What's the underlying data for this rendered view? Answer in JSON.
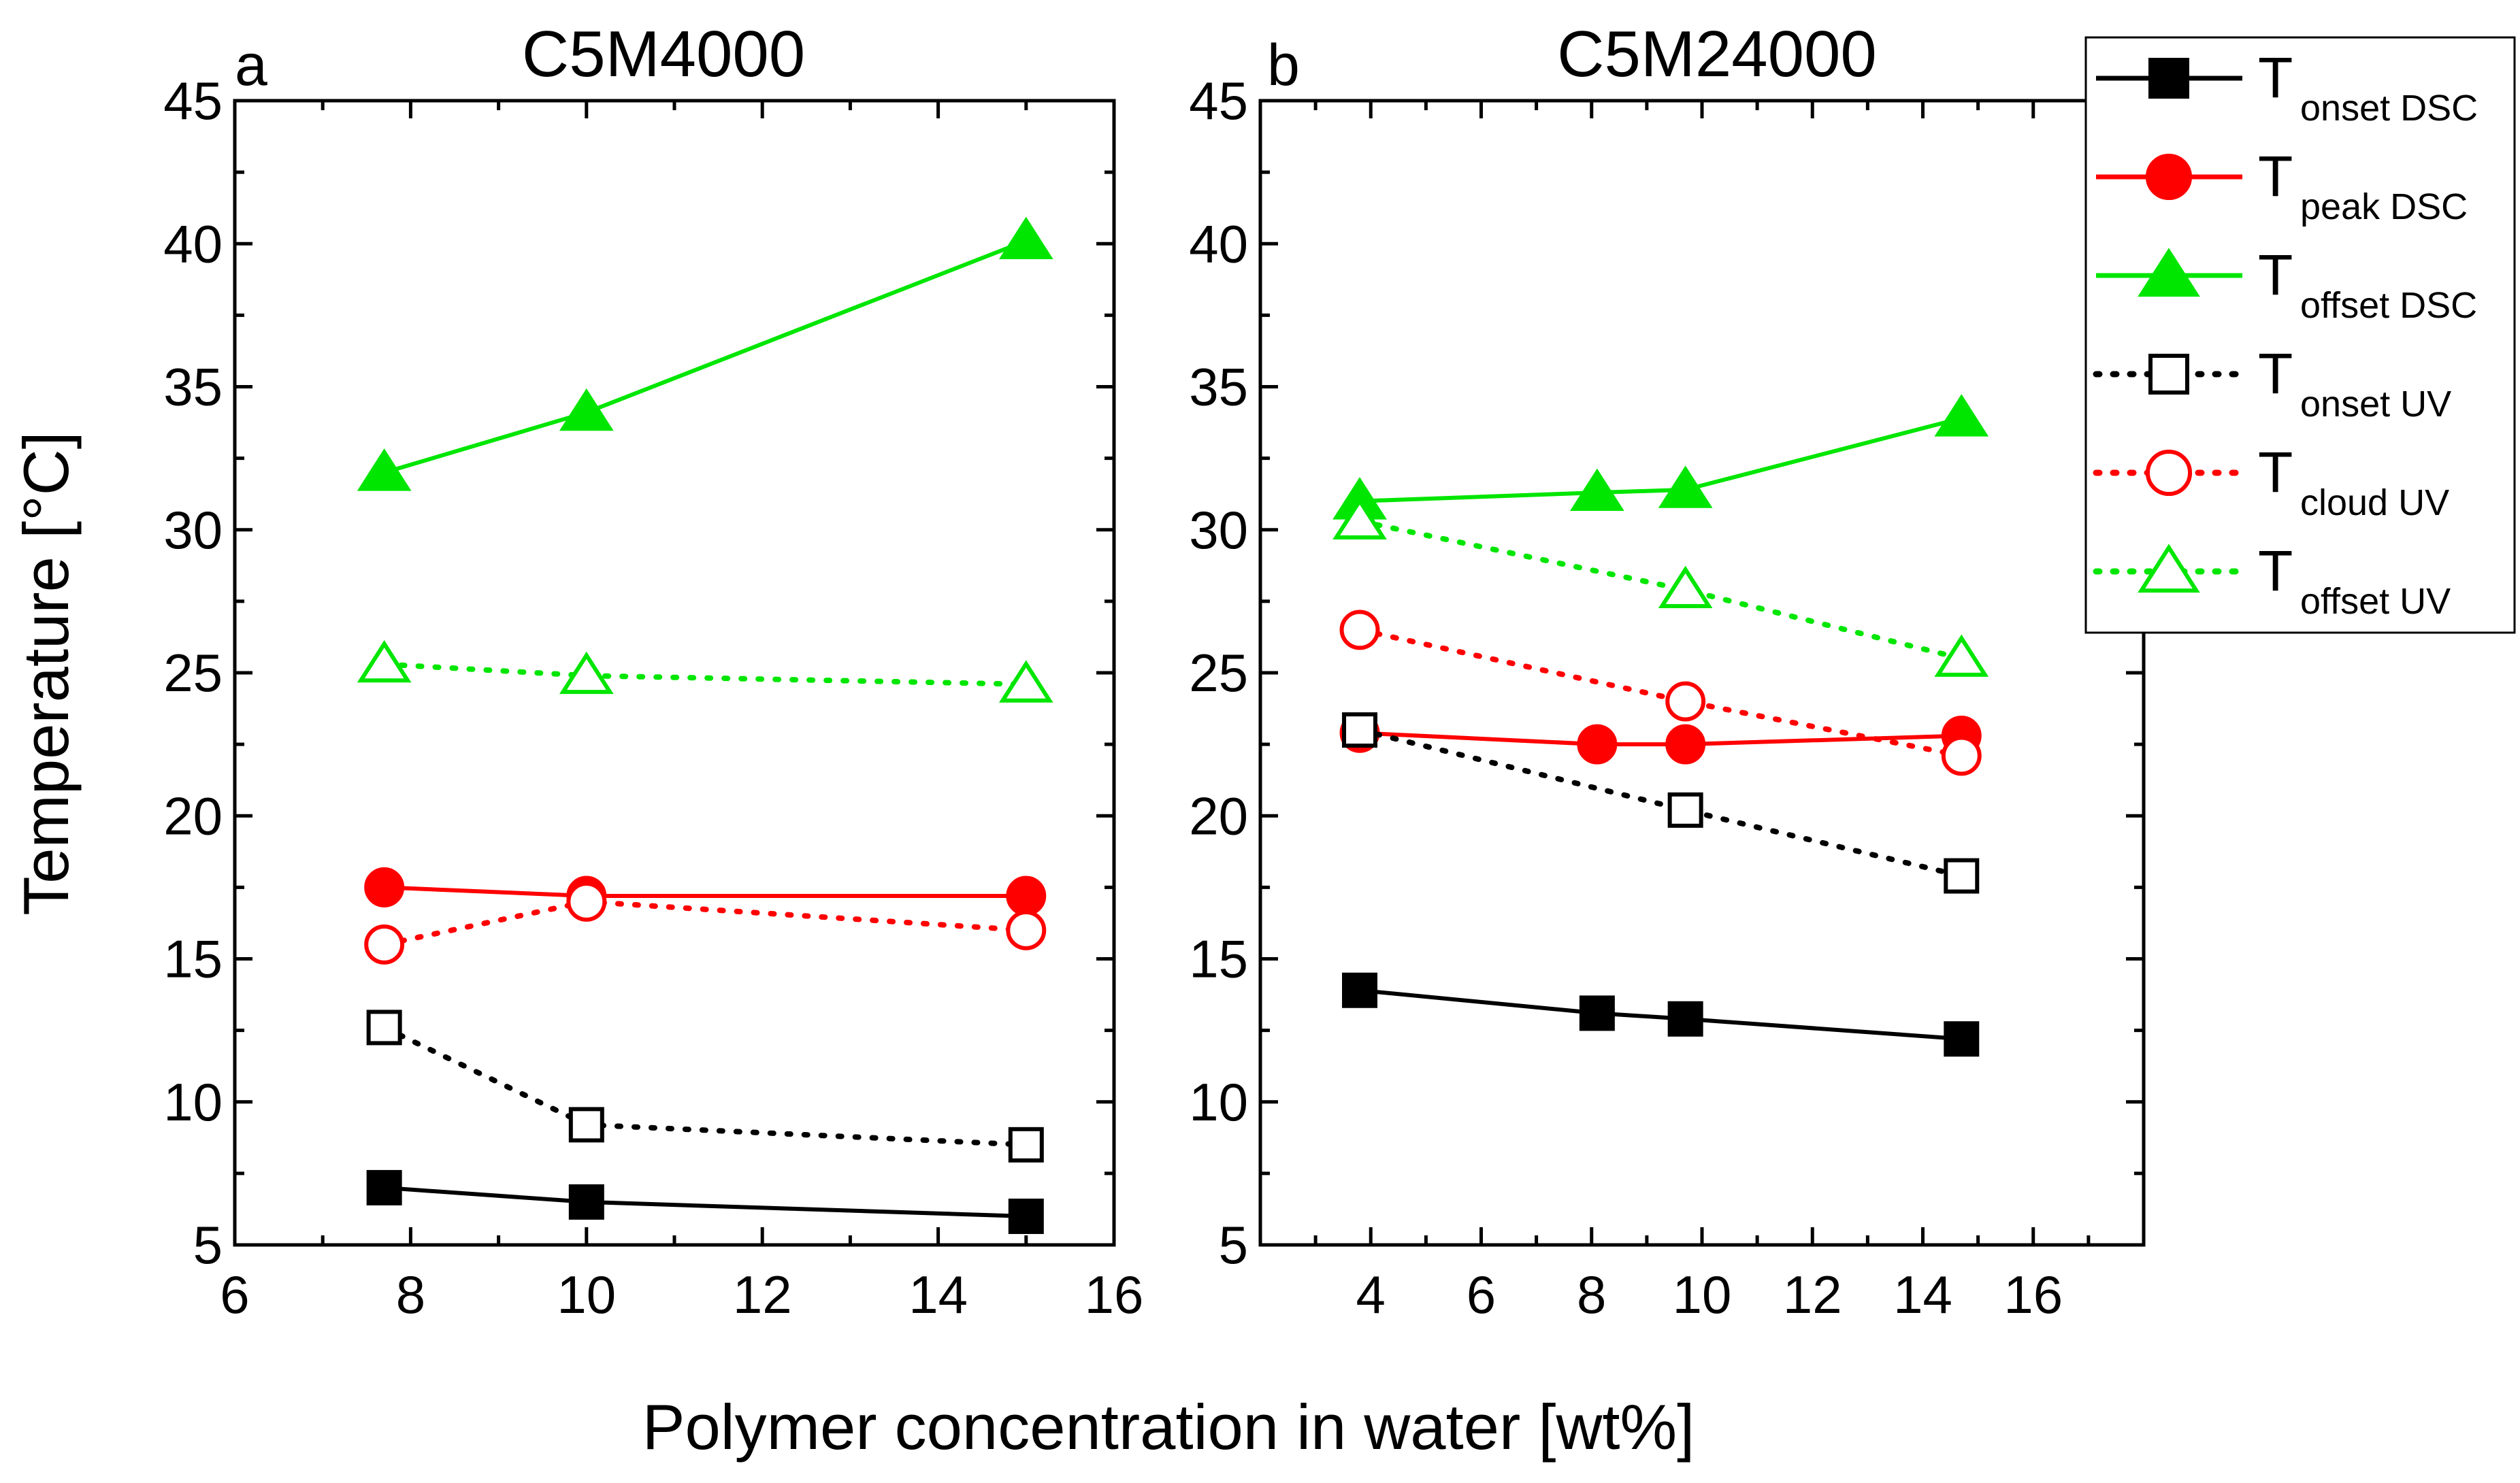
{
  "figure": {
    "shared_xlabel": "Polymer concentration in water [wt%]",
    "shared_ylabel": "Temperature [°C]"
  },
  "legend": {
    "entries": [
      {
        "main": "T",
        "sub": "onset DSC",
        "series_index": 0
      },
      {
        "main": "T",
        "sub": "peak  DSC",
        "series_index": 1
      },
      {
        "main": "T",
        "sub": "offset DSC",
        "series_index": 2
      },
      {
        "main": "T",
        "sub": "onset UV",
        "series_index": 3
      },
      {
        "main": "T",
        "sub": "cloud UV",
        "series_index": 4
      },
      {
        "main": "T",
        "sub": "offset UV",
        "series_index": 5
      }
    ]
  },
  "chart_data": [
    {
      "type": "line",
      "panel_letter": "a",
      "title": "C5M4000",
      "xlabel": "Polymer concentration in water [wt%]",
      "ylabel": "Temperature [°C]",
      "xlim": [
        6,
        16
      ],
      "ylim": [
        5,
        45
      ],
      "xticks": [
        6,
        8,
        10,
        12,
        14,
        16
      ],
      "yticks": [
        5,
        10,
        15,
        20,
        25,
        30,
        35,
        40,
        45
      ],
      "grid": false,
      "series": [
        {
          "name": "T onset DSC",
          "color": "#000000",
          "marker": "square",
          "filled": true,
          "line": "solid",
          "x": [
            7.7,
            10.0,
            15.0
          ],
          "y": [
            7.0,
            6.5,
            6.0
          ]
        },
        {
          "name": "T peak DSC",
          "color": "#ff0000",
          "marker": "circle",
          "filled": true,
          "line": "solid",
          "x": [
            7.7,
            10.0,
            15.0
          ],
          "y": [
            17.5,
            17.2,
            17.2
          ]
        },
        {
          "name": "T offset DSC",
          "color": "#00e600",
          "marker": "triangle",
          "filled": true,
          "line": "solid",
          "x": [
            7.7,
            10.0,
            15.0
          ],
          "y": [
            32.0,
            34.1,
            40.1
          ]
        },
        {
          "name": "T onset UV",
          "color": "#000000",
          "marker": "square",
          "filled": false,
          "line": "dotted",
          "x": [
            7.7,
            10.0,
            15.0
          ],
          "y": [
            12.6,
            9.2,
            8.5
          ]
        },
        {
          "name": "T cloud UV",
          "color": "#ff0000",
          "marker": "circle",
          "filled": false,
          "line": "dotted",
          "x": [
            7.7,
            10.0,
            15.0
          ],
          "y": [
            15.5,
            17.0,
            16.0
          ]
        },
        {
          "name": "T offset UV",
          "color": "#00e600",
          "marker": "triangle",
          "filled": false,
          "line": "dotted",
          "x": [
            7.7,
            10.0,
            15.0
          ],
          "y": [
            25.3,
            24.9,
            24.6
          ]
        }
      ]
    },
    {
      "type": "line",
      "panel_letter": "b",
      "title": "C5M24000",
      "xlabel": "Polymer concentration in water [wt%]",
      "ylabel": "",
      "xlim": [
        2,
        18
      ],
      "ylim": [
        5,
        45
      ],
      "xticks": [
        4,
        6,
        8,
        10,
        12,
        14,
        16
      ],
      "yticks": [
        5,
        10,
        15,
        20,
        25,
        30,
        35,
        40,
        45
      ],
      "grid": false,
      "series": [
        {
          "name": "T onset DSC",
          "color": "#000000",
          "marker": "square",
          "filled": true,
          "line": "solid",
          "x": [
            3.8,
            8.1,
            9.7,
            14.7
          ],
          "y": [
            13.9,
            13.1,
            12.9,
            12.2
          ]
        },
        {
          "name": "T peak DSC",
          "color": "#ff0000",
          "marker": "circle",
          "filled": true,
          "line": "solid",
          "x": [
            3.8,
            8.1,
            9.7,
            14.7
          ],
          "y": [
            22.9,
            22.5,
            22.5,
            22.8
          ]
        },
        {
          "name": "T offset DSC",
          "color": "#00e600",
          "marker": "triangle",
          "filled": true,
          "line": "solid",
          "x": [
            3.8,
            8.1,
            9.7,
            14.7
          ],
          "y": [
            31.0,
            31.3,
            31.4,
            33.9
          ]
        },
        {
          "name": "T onset UV",
          "color": "#000000",
          "marker": "square",
          "filled": false,
          "line": "dotted",
          "x": [
            3.8,
            9.7,
            14.7
          ],
          "y": [
            23.0,
            20.2,
            17.9
          ]
        },
        {
          "name": "T cloud UV",
          "color": "#ff0000",
          "marker": "circle",
          "filled": false,
          "line": "dotted",
          "x": [
            3.8,
            9.7,
            14.7
          ],
          "y": [
            26.5,
            24.0,
            22.1
          ]
        },
        {
          "name": "T offset UV",
          "color": "#00e600",
          "marker": "triangle",
          "filled": false,
          "line": "dotted",
          "x": [
            3.8,
            9.7,
            14.7
          ],
          "y": [
            30.3,
            27.9,
            25.5
          ]
        }
      ]
    }
  ]
}
